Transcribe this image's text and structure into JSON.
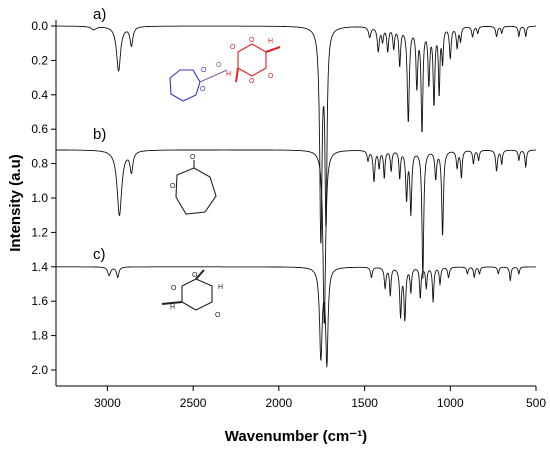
{
  "chart_data": {
    "type": "line",
    "title": "",
    "xlabel": "Wavenumber (cm⁻¹)",
    "ylabel": "Intensity (a.u)",
    "xlim": [
      3300,
      500
    ],
    "ylim": [
      0.0,
      2.1
    ],
    "x_ticks": [
      3000,
      2500,
      2000,
      1500,
      1000,
      500
    ],
    "x_tick_labels": [
      "3000",
      "2500",
      "2000",
      "1500",
      "1000",
      "500"
    ],
    "y_ticks": [
      0.0,
      0.2,
      0.4,
      0.6,
      0.8,
      1.0,
      1.2,
      1.4,
      1.6,
      1.8,
      2.0
    ],
    "y_tick_labels": [
      "0.0",
      "0.2",
      "0.4",
      "0.6",
      "0.8",
      "1.0",
      "1.2",
      "1.4",
      "1.6",
      "1.8",
      "2.0"
    ],
    "grid": false,
    "legend": "none",
    "series": [
      {
        "label": "a)",
        "baseline": 0.0,
        "peaks": [
          [
            3080,
            0.02,
            18
          ],
          [
            2935,
            0.26,
            14
          ],
          [
            2860,
            0.11,
            10
          ],
          [
            1755,
            1.22,
            8
          ],
          [
            1725,
            1.1,
            7
          ],
          [
            1470,
            0.06,
            8
          ],
          [
            1420,
            0.14,
            7
          ],
          [
            1395,
            0.08,
            6
          ],
          [
            1365,
            0.14,
            6
          ],
          [
            1330,
            0.12,
            6
          ],
          [
            1295,
            0.22,
            6
          ],
          [
            1245,
            0.55,
            7
          ],
          [
            1195,
            0.34,
            6
          ],
          [
            1165,
            0.6,
            6
          ],
          [
            1125,
            0.32,
            6
          ],
          [
            1095,
            0.44,
            6
          ],
          [
            1065,
            0.38,
            5
          ],
          [
            1045,
            0.2,
            5
          ],
          [
            1000,
            0.18,
            6
          ],
          [
            960,
            0.12,
            6
          ],
          [
            940,
            0.08,
            5
          ],
          [
            870,
            0.06,
            6
          ],
          [
            840,
            0.04,
            5
          ],
          [
            730,
            0.06,
            6
          ],
          [
            700,
            0.04,
            5
          ],
          [
            600,
            0.06,
            5
          ],
          [
            560,
            0.06,
            5
          ]
        ]
      },
      {
        "label": "b)",
        "baseline": 0.72,
        "peaks": [
          [
            2930,
            0.38,
            16
          ],
          [
            2860,
            0.12,
            10
          ],
          [
            1735,
            1.02,
            9
          ],
          [
            1480,
            0.06,
            6
          ],
          [
            1445,
            0.18,
            6
          ],
          [
            1415,
            0.1,
            5
          ],
          [
            1385,
            0.16,
            5
          ],
          [
            1345,
            0.12,
            5
          ],
          [
            1295,
            0.16,
            5
          ],
          [
            1255,
            0.28,
            6
          ],
          [
            1230,
            0.36,
            6
          ],
          [
            1160,
            0.74,
            6
          ],
          [
            1085,
            0.16,
            6
          ],
          [
            1045,
            0.5,
            6
          ],
          [
            960,
            0.1,
            6
          ],
          [
            935,
            0.16,
            5
          ],
          [
            865,
            0.08,
            5
          ],
          [
            835,
            0.06,
            5
          ],
          [
            730,
            0.12,
            6
          ],
          [
            700,
            0.08,
            5
          ],
          [
            600,
            0.06,
            5
          ],
          [
            560,
            0.1,
            5
          ]
        ]
      },
      {
        "label": "c)",
        "baseline": 1.4,
        "peaks": [
          [
            2990,
            0.05,
            10
          ],
          [
            2940,
            0.06,
            8
          ],
          [
            1755,
            0.52,
            9
          ],
          [
            1720,
            0.55,
            8
          ],
          [
            1460,
            0.06,
            6
          ],
          [
            1380,
            0.12,
            6
          ],
          [
            1350,
            0.16,
            5
          ],
          [
            1290,
            0.28,
            6
          ],
          [
            1265,
            0.3,
            6
          ],
          [
            1230,
            0.14,
            5
          ],
          [
            1175,
            0.18,
            5
          ],
          [
            1140,
            0.12,
            5
          ],
          [
            1100,
            0.2,
            5
          ],
          [
            1060,
            0.1,
            5
          ],
          [
            1010,
            0.06,
            6
          ],
          [
            900,
            0.04,
            5
          ],
          [
            860,
            0.06,
            5
          ],
          [
            830,
            0.04,
            5
          ],
          [
            720,
            0.04,
            5
          ],
          [
            650,
            0.08,
            5
          ],
          [
            600,
            0.04,
            5
          ]
        ]
      }
    ]
  },
  "structures": {
    "a": {
      "left_atoms": [
        "O",
        "O"
      ],
      "bridge_atoms": [
        "O",
        "H"
      ],
      "right_atoms": [
        "O",
        "O",
        "O",
        "O",
        "H"
      ],
      "colors": {
        "left": "#3333cc",
        "right": "#dd2222",
        "bridge": "#8a5aa6"
      }
    },
    "b": {
      "atoms": [
        "O",
        "O"
      ]
    },
    "c": {
      "atoms": [
        "O",
        "O",
        "O",
        "H",
        "H"
      ]
    }
  }
}
